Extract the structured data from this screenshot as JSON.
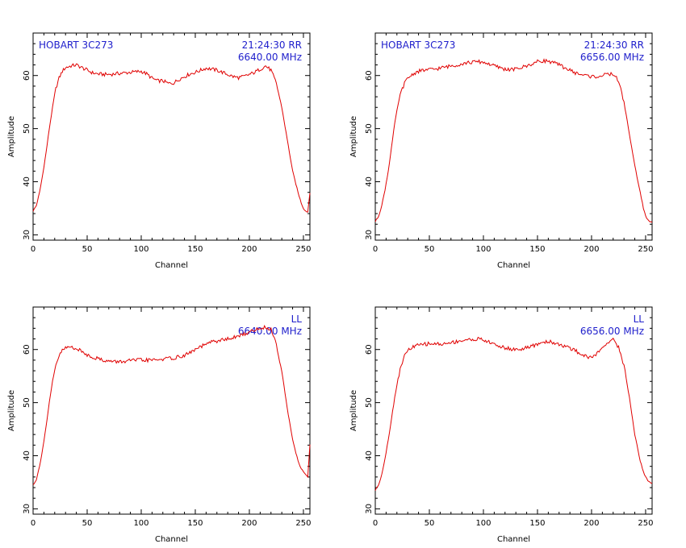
{
  "colors": {
    "trace": "#e00000",
    "annotation": "#2020cc",
    "axes": "#000000"
  },
  "chart_data": [
    {
      "type": "line",
      "title": "",
      "annotations": {
        "left": "HOBART 3C273",
        "right_line1": "21:24:30  RR",
        "right_line2": "6640.00  MHz"
      },
      "xlabel": "Channel",
      "ylabel": "Amplitude",
      "xlim": [
        0,
        256
      ],
      "ylim": [
        29,
        68
      ],
      "xticks": [
        0,
        50,
        100,
        150,
        200,
        250
      ],
      "yticks": [
        30,
        40,
        50,
        60
      ],
      "grid": false,
      "series": [
        {
          "x": [
            0,
            3,
            6,
            9,
            12,
            15,
            18,
            21,
            24,
            27,
            30,
            35,
            40,
            45,
            50,
            55,
            60,
            65,
            70,
            75,
            80,
            85,
            90,
            95,
            100,
            105,
            110,
            115,
            120,
            125,
            130,
            135,
            140,
            145,
            150,
            155,
            160,
            165,
            170,
            175,
            180,
            185,
            190,
            195,
            200,
            205,
            210,
            215,
            220,
            225,
            230,
            235,
            240,
            245,
            248,
            250,
            252,
            254,
            256
          ],
          "y": [
            34.5,
            35.5,
            38,
            41.5,
            45.5,
            50,
            54,
            57.5,
            59.5,
            60.8,
            61.5,
            61.8,
            62,
            61.5,
            61,
            60.5,
            60.3,
            60.2,
            60.2,
            60.3,
            60.4,
            60.5,
            60.6,
            60.7,
            60.8,
            60.3,
            59.5,
            59,
            59,
            58.5,
            58.6,
            59.3,
            59.8,
            60.3,
            60.6,
            61,
            61.4,
            61.2,
            61,
            60.6,
            60.2,
            59.8,
            59.6,
            59.8,
            60.2,
            60.6,
            61.2,
            61.8,
            61,
            58.5,
            54,
            48,
            42,
            38,
            36,
            35,
            34.5,
            34.3,
            38
          ]
        }
      ]
    },
    {
      "type": "line",
      "title": "",
      "annotations": {
        "left": "HOBART 3C273",
        "right_line1": "21:24:30  RR",
        "right_line2": "6656.00  MHz"
      },
      "xlabel": "Channel",
      "ylabel": "Amplitude",
      "xlim": [
        0,
        256
      ],
      "ylim": [
        29,
        68
      ],
      "xticks": [
        0,
        50,
        100,
        150,
        200,
        250
      ],
      "yticks": [
        30,
        40,
        50,
        60
      ],
      "grid": false,
      "series": [
        {
          "x": [
            0,
            3,
            6,
            9,
            12,
            15,
            18,
            21,
            24,
            27,
            30,
            35,
            40,
            45,
            50,
            55,
            60,
            65,
            70,
            75,
            80,
            85,
            90,
            95,
            100,
            105,
            110,
            115,
            120,
            125,
            130,
            135,
            140,
            145,
            150,
            155,
            160,
            165,
            170,
            175,
            180,
            185,
            190,
            195,
            200,
            205,
            210,
            215,
            220,
            225,
            230,
            235,
            240,
            245,
            248,
            250,
            252,
            254,
            256
          ],
          "y": [
            32.5,
            33.5,
            35.5,
            38.5,
            42,
            46.5,
            51,
            54.5,
            57,
            58.5,
            59.5,
            60.3,
            60.8,
            61,
            61.1,
            61.2,
            61.4,
            61.6,
            61.8,
            62,
            62.2,
            62.4,
            62.5,
            62.6,
            62.5,
            62.2,
            61.8,
            61.5,
            61.2,
            61.1,
            61.2,
            61.5,
            61.8,
            62.2,
            62.6,
            62.8,
            62.7,
            62.4,
            62,
            61.5,
            61,
            60.5,
            60.2,
            60,
            59.8,
            59.8,
            60,
            60.2,
            60.3,
            59,
            55,
            49,
            43,
            38,
            35,
            33.5,
            32.8,
            32.5,
            32.3
          ]
        }
      ]
    },
    {
      "type": "line",
      "title": "",
      "annotations": {
        "left": "",
        "right_line1": "LL",
        "right_line2": "6640.00  MHz"
      },
      "xlabel": "Channel",
      "ylabel": "Amplitude",
      "xlim": [
        0,
        256
      ],
      "ylim": [
        29,
        68
      ],
      "xticks": [
        0,
        50,
        100,
        150,
        200,
        250
      ],
      "yticks": [
        30,
        40,
        50,
        60
      ],
      "grid": false,
      "series": [
        {
          "x": [
            0,
            3,
            6,
            9,
            12,
            15,
            18,
            21,
            24,
            27,
            30,
            35,
            40,
            45,
            50,
            55,
            60,
            65,
            70,
            75,
            80,
            85,
            90,
            95,
            100,
            105,
            110,
            115,
            120,
            125,
            130,
            135,
            140,
            145,
            150,
            155,
            160,
            165,
            170,
            175,
            180,
            185,
            190,
            195,
            200,
            205,
            210,
            215,
            220,
            225,
            230,
            235,
            240,
            245,
            248,
            250,
            252,
            254,
            256
          ],
          "y": [
            34.5,
            35.5,
            38,
            41.5,
            45.5,
            50,
            54,
            57,
            58.8,
            59.8,
            60.3,
            60.5,
            60.2,
            59.6,
            59,
            58.6,
            58.3,
            58,
            57.8,
            57.7,
            57.7,
            57.8,
            57.9,
            58,
            58,
            58,
            58,
            58.1,
            58.2,
            58.3,
            58.4,
            58.6,
            58.9,
            59.4,
            60,
            60.5,
            61,
            61.4,
            61.6,
            61.8,
            62,
            62.2,
            62.5,
            62.9,
            63.3,
            63.7,
            64,
            64.2,
            63.8,
            61,
            56,
            49,
            43,
            39,
            37.5,
            37,
            36.5,
            36,
            42
          ]
        }
      ]
    },
    {
      "type": "line",
      "title": "",
      "annotations": {
        "left": "",
        "right_line1": "LL",
        "right_line2": "6656.00  MHz"
      },
      "xlabel": "Channel",
      "ylabel": "Amplitude",
      "xlim": [
        0,
        256
      ],
      "ylim": [
        29,
        68
      ],
      "xticks": [
        0,
        50,
        100,
        150,
        200,
        250
      ],
      "yticks": [
        30,
        40,
        50,
        60
      ],
      "grid": false,
      "series": [
        {
          "x": [
            0,
            3,
            6,
            9,
            12,
            15,
            18,
            21,
            24,
            27,
            30,
            35,
            40,
            45,
            50,
            55,
            60,
            65,
            70,
            75,
            80,
            85,
            90,
            95,
            100,
            105,
            110,
            115,
            120,
            125,
            130,
            135,
            140,
            145,
            150,
            155,
            160,
            165,
            170,
            175,
            180,
            185,
            190,
            195,
            200,
            205,
            210,
            215,
            220,
            225,
            230,
            235,
            240,
            245,
            248,
            250,
            252,
            254,
            256
          ],
          "y": [
            33.5,
            34.5,
            36.5,
            39.5,
            43,
            47,
            51,
            54.5,
            57,
            58.8,
            59.8,
            60.5,
            60.8,
            61,
            61.1,
            61.1,
            61,
            61.1,
            61.3,
            61.5,
            61.7,
            61.8,
            61.9,
            62,
            61.8,
            61.4,
            61,
            60.6,
            60.3,
            60.1,
            60,
            60.1,
            60.3,
            60.6,
            61,
            61.4,
            61.5,
            61.3,
            61,
            60.6,
            60.2,
            59.8,
            59.2,
            58.7,
            58.5,
            59.2,
            60.3,
            61.5,
            61.8,
            60.5,
            57,
            51,
            44,
            39,
            37,
            36,
            35.3,
            35,
            34.8
          ]
        }
      ]
    }
  ]
}
